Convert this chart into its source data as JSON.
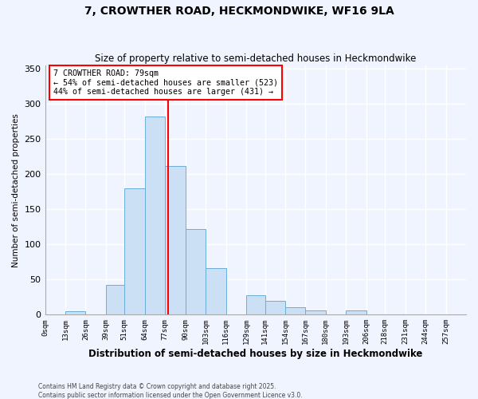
{
  "title": "7, CROWTHER ROAD, HECKMONDWIKE, WF16 9LA",
  "subtitle": "Size of property relative to semi-detached houses in Heckmondwike",
  "xlabel": "Distribution of semi-detached houses by size in Heckmondwike",
  "ylabel": "Number of semi-detached properties",
  "footer_line1": "Contains HM Land Registry data © Crown copyright and database right 2025.",
  "footer_line2": "Contains public sector information licensed under the Open Government Licence v3.0.",
  "bin_labels": [
    "0sqm",
    "13sqm",
    "26sqm",
    "39sqm",
    "51sqm",
    "64sqm",
    "77sqm",
    "90sqm",
    "103sqm",
    "116sqm",
    "129sqm",
    "141sqm",
    "154sqm",
    "167sqm",
    "180sqm",
    "193sqm",
    "206sqm",
    "218sqm",
    "231sqm",
    "244sqm",
    "257sqm"
  ],
  "bin_values": [
    0,
    5,
    0,
    43,
    180,
    282,
    212,
    122,
    66,
    0,
    28,
    20,
    11,
    6,
    0,
    6,
    0,
    0,
    0,
    0,
    0
  ],
  "bar_color": "#cce0f5",
  "bar_edge_color": "#6baed6",
  "vline_x": 79,
  "vline_color": "red",
  "ylim": [
    0,
    355
  ],
  "yticks": [
    0,
    50,
    100,
    150,
    200,
    250,
    300,
    350
  ],
  "annotation_title": "7 CROWTHER ROAD: 79sqm",
  "annotation_line1": "← 54% of semi-detached houses are smaller (523)",
  "annotation_line2": "44% of semi-detached houses are larger (431) →",
  "annotation_box_color": "red",
  "background_color": "#f0f4ff",
  "grid_color": "white",
  "bin_edges": [
    0,
    13,
    26,
    39,
    51,
    64,
    77,
    90,
    103,
    116,
    129,
    141,
    154,
    167,
    180,
    193,
    206,
    218,
    231,
    244,
    257
  ]
}
